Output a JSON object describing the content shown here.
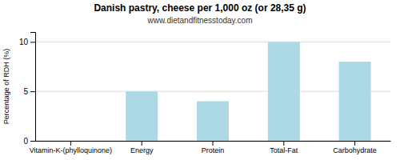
{
  "chart_data": {
    "type": "bar",
    "title": "Danish pastry, cheese per 1,000 oz (or 28,35 g)",
    "subtitle": "www.dietandfitnesstoday.com",
    "categories": [
      "Vitamin-K-(phylloquinone)",
      "Energy",
      "Protein",
      "Total-Fat",
      "Carbohydrate"
    ],
    "values": [
      0,
      5,
      4,
      10,
      8
    ],
    "color": "#add8e6",
    "ylabel": "Percentage of RDH (%)",
    "ylim": [
      0,
      11
    ],
    "yticks": [
      0,
      5,
      10
    ],
    "grid": true
  }
}
